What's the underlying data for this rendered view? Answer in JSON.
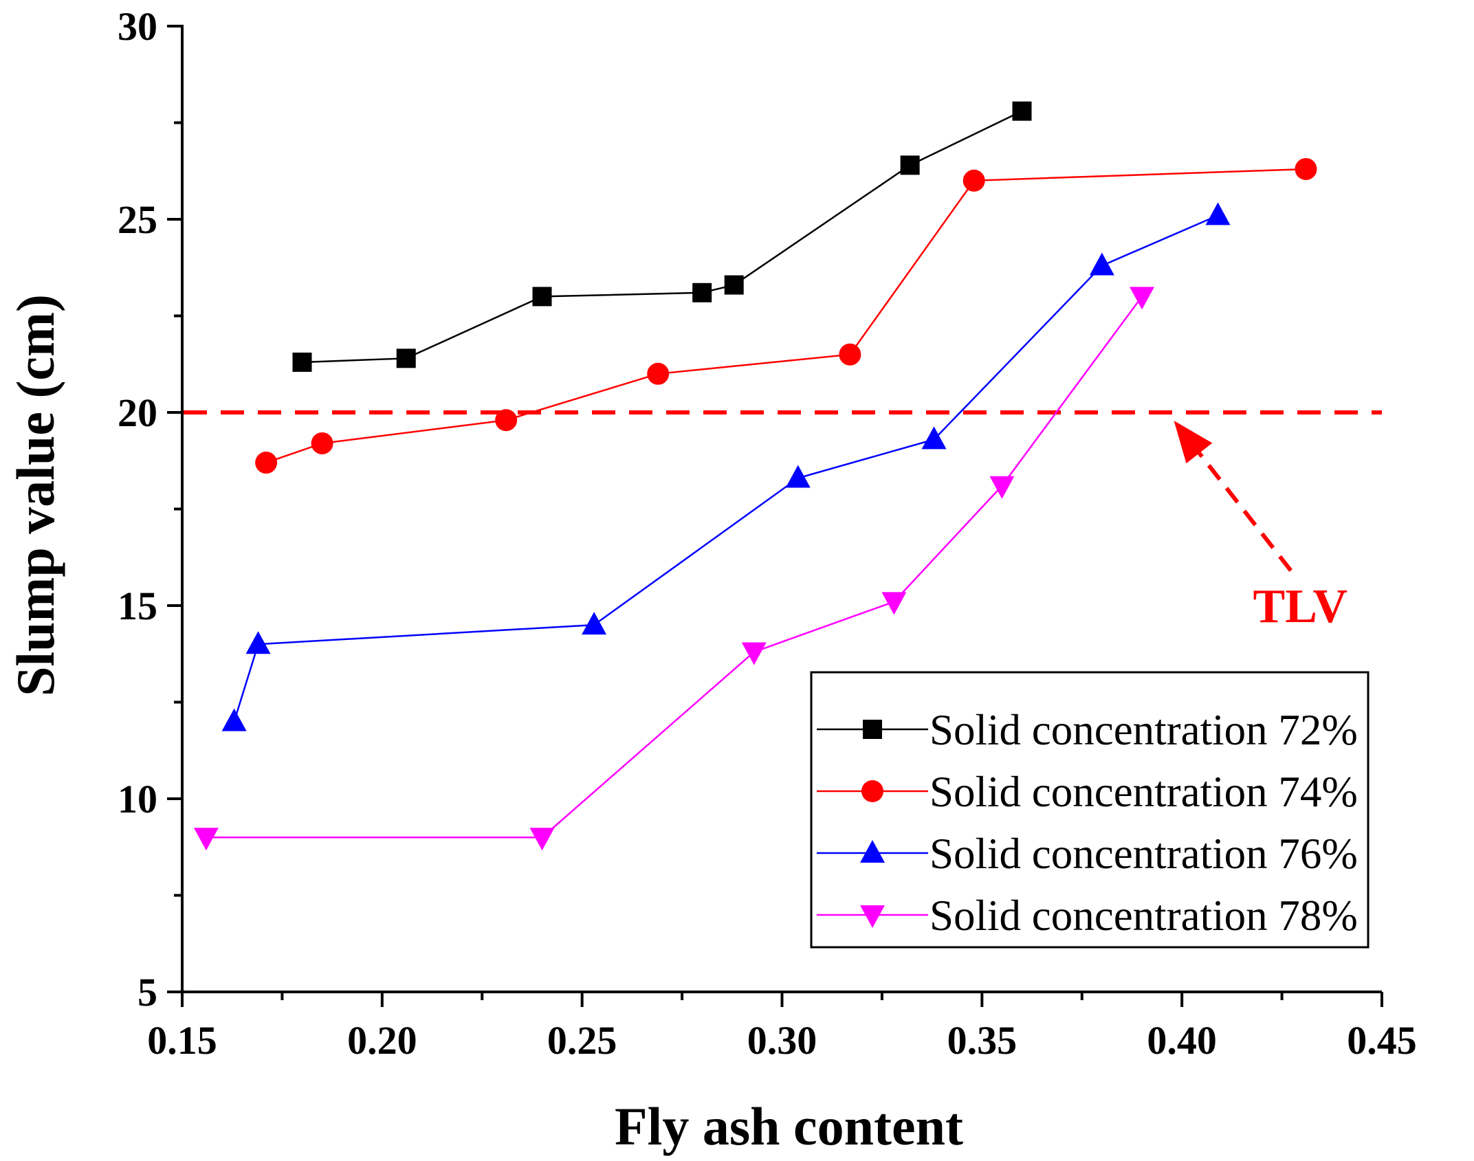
{
  "chart_data": {
    "type": "line",
    "xlabel": "Fly ash content",
    "ylabel": "Slump value (cm)",
    "xlim": [
      0.15,
      0.45
    ],
    "ylim": [
      5,
      30
    ],
    "xticks": [
      0.15,
      0.2,
      0.25,
      0.3,
      0.35,
      0.4,
      0.45
    ],
    "xtick_labels": [
      "0.15",
      "0.20",
      "0.25",
      "0.30",
      "0.35",
      "0.40",
      "0.45"
    ],
    "yticks": [
      5,
      10,
      15,
      20,
      25,
      30
    ],
    "ytick_labels": [
      "5",
      "10",
      "15",
      "20",
      "25",
      "30"
    ],
    "grid": false,
    "legend_position": "bottom-right",
    "series": [
      {
        "name": "Solid concentration 72%",
        "color": "#000000",
        "marker": "square",
        "x": [
          0.18,
          0.206,
          0.24,
          0.28,
          0.288,
          0.332,
          0.36
        ],
        "y": [
          21.3,
          21.4,
          23.0,
          23.1,
          23.3,
          26.4,
          27.8
        ]
      },
      {
        "name": "Solid concentration 74%",
        "color": "#ff0000",
        "marker": "circle",
        "x": [
          0.171,
          0.185,
          0.231,
          0.269,
          0.317,
          0.348,
          0.431
        ],
        "y": [
          18.7,
          19.2,
          19.8,
          21.0,
          21.5,
          26.0,
          26.3
        ]
      },
      {
        "name": "Solid concentration 76%",
        "color": "#0000ff",
        "marker": "triangle-up",
        "x": [
          0.163,
          0.169,
          0.253,
          0.304,
          0.338,
          0.38,
          0.409
        ],
        "y": [
          12.0,
          14.0,
          14.5,
          18.3,
          19.3,
          23.8,
          25.1
        ]
      },
      {
        "name": "Solid concentration 78%",
        "color": "#ff00ff",
        "marker": "triangle-down",
        "x": [
          0.156,
          0.24,
          0.293,
          0.328,
          0.355,
          0.39
        ],
        "y": [
          9.0,
          9.0,
          13.8,
          15.1,
          18.1,
          23.0
        ]
      }
    ],
    "reference_line": {
      "y": 20,
      "color": "#ff0000",
      "style": "dashed"
    },
    "annotations": [
      {
        "text": "TLV",
        "color": "#ff0000",
        "arrow_to": [
          0.398,
          20
        ]
      }
    ]
  }
}
